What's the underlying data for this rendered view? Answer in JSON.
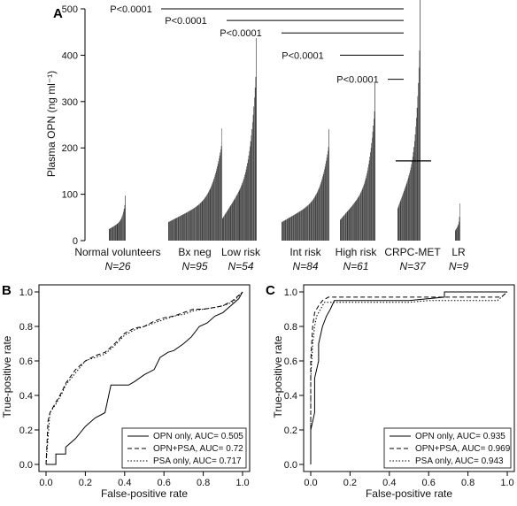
{
  "chart_data": [
    {
      "panel": "A",
      "type": "bar",
      "ylabel": "Plasma OPN (ng ml⁻¹)",
      "ylim": [
        0,
        500
      ],
      "yticks": [
        0,
        100,
        200,
        300,
        400,
        500
      ],
      "groups": [
        {
          "name": "Normal volunteers",
          "n": "N=26",
          "min": 25,
          "max": 97,
          "count": 26
        },
        {
          "name": "Bx neg",
          "n": "N=95",
          "min": 40,
          "max": 242,
          "count": 95
        },
        {
          "name": "Low risk",
          "n": "N=54",
          "min": 48,
          "max": 437,
          "count": 54
        },
        {
          "name": "Int risk",
          "n": "N=84",
          "min": 40,
          "max": 240,
          "count": 84
        },
        {
          "name": "High risk",
          "n": "N=61",
          "min": 45,
          "max": 340,
          "count": 61
        },
        {
          "name": "CRPC-MET",
          "n": "N=37",
          "min": 70,
          "max": 520,
          "count": 37,
          "median": 172
        },
        {
          "name": "LR",
          "n": "N=9",
          "min": 22,
          "max": 80,
          "count": 9
        }
      ],
      "comparisons": [
        {
          "label": "P<0.0001",
          "y": 500
        },
        {
          "label": "P<0.0001",
          "y": 475
        },
        {
          "label": "P<0.0001",
          "y": 448
        },
        {
          "label": "P<0.0001",
          "y": 400
        },
        {
          "label": "P<0.0001",
          "y": 348
        }
      ]
    },
    {
      "panel": "B",
      "type": "line",
      "xlabel": "False-positive rate",
      "ylabel": "True-positive rate",
      "xlim": [
        0,
        1
      ],
      "ylim": [
        0,
        1
      ],
      "xticks": [
        "0.0",
        "0.2",
        "0.4",
        "0.6",
        "0.8",
        "1.0"
      ],
      "yticks": [
        "0.0",
        "0.2",
        "0.4",
        "0.6",
        "0.8",
        "1.0"
      ],
      "series": [
        {
          "name": "OPN only, AUC= 0.505",
          "style": "solid",
          "points": [
            [
              0,
              0
            ],
            [
              0.05,
              0
            ],
            [
              0.05,
              0.06
            ],
            [
              0.1,
              0.06
            ],
            [
              0.1,
              0.1
            ],
            [
              0.15,
              0.15
            ],
            [
              0.2,
              0.22
            ],
            [
              0.25,
              0.27
            ],
            [
              0.3,
              0.3
            ],
            [
              0.33,
              0.46
            ],
            [
              0.38,
              0.46
            ],
            [
              0.42,
              0.46
            ],
            [
              0.45,
              0.48
            ],
            [
              0.5,
              0.52
            ],
            [
              0.55,
              0.55
            ],
            [
              0.58,
              0.62
            ],
            [
              0.62,
              0.65
            ],
            [
              0.65,
              0.66
            ],
            [
              0.7,
              0.7
            ],
            [
              0.74,
              0.74
            ],
            [
              0.78,
              0.8
            ],
            [
              0.82,
              0.82
            ],
            [
              0.86,
              0.86
            ],
            [
              0.9,
              0.88
            ],
            [
              0.94,
              0.92
            ],
            [
              0.98,
              0.96
            ],
            [
              1,
              1
            ]
          ]
        },
        {
          "name": "OPN+PSA, AUC= 0.72",
          "style": "dashed",
          "points": [
            [
              0,
              0
            ],
            [
              0.01,
              0.25
            ],
            [
              0.02,
              0.3
            ],
            [
              0.05,
              0.36
            ],
            [
              0.08,
              0.42
            ],
            [
              0.1,
              0.47
            ],
            [
              0.15,
              0.55
            ],
            [
              0.2,
              0.6
            ],
            [
              0.25,
              0.63
            ],
            [
              0.3,
              0.65
            ],
            [
              0.35,
              0.7
            ],
            [
              0.4,
              0.76
            ],
            [
              0.45,
              0.79
            ],
            [
              0.5,
              0.8
            ],
            [
              0.55,
              0.83
            ],
            [
              0.6,
              0.85
            ],
            [
              0.65,
              0.86
            ],
            [
              0.7,
              0.88
            ],
            [
              0.75,
              0.9
            ],
            [
              0.8,
              0.9
            ],
            [
              0.86,
              0.91
            ],
            [
              0.9,
              0.92
            ],
            [
              0.95,
              0.95
            ],
            [
              1,
              1
            ]
          ]
        },
        {
          "name": "PSA only, AUC= 0.717",
          "style": "dotted",
          "points": [
            [
              0,
              0
            ],
            [
              0.02,
              0.3
            ],
            [
              0.05,
              0.35
            ],
            [
              0.08,
              0.41
            ],
            [
              0.1,
              0.46
            ],
            [
              0.15,
              0.53
            ],
            [
              0.2,
              0.6
            ],
            [
              0.25,
              0.62
            ],
            [
              0.3,
              0.64
            ],
            [
              0.35,
              0.69
            ],
            [
              0.4,
              0.75
            ],
            [
              0.45,
              0.78
            ],
            [
              0.5,
              0.8
            ],
            [
              0.55,
              0.82
            ],
            [
              0.6,
              0.84
            ],
            [
              0.65,
              0.86
            ],
            [
              0.7,
              0.87
            ],
            [
              0.75,
              0.89
            ],
            [
              0.8,
              0.9
            ],
            [
              0.86,
              0.91
            ],
            [
              0.9,
              0.92
            ],
            [
              0.95,
              0.94
            ],
            [
              1,
              1
            ]
          ]
        }
      ],
      "legend": "bottom-right"
    },
    {
      "panel": "C",
      "type": "line",
      "xlabel": "False-positive rate",
      "ylabel": "True-positive rate",
      "xlim": [
        0,
        1
      ],
      "ylim": [
        0,
        1
      ],
      "xticks": [
        "0.0",
        "0.2",
        "0.4",
        "0.6",
        "0.8",
        "1.0"
      ],
      "yticks": [
        "0.0",
        "0.2",
        "0.4",
        "0.6",
        "0.8",
        "1.0"
      ],
      "series": [
        {
          "name": "OPN only, AUC= 0.935",
          "style": "solid",
          "points": [
            [
              0,
              0
            ],
            [
              0,
              0.2
            ],
            [
              0.02,
              0.3
            ],
            [
              0.02,
              0.5
            ],
            [
              0.04,
              0.6
            ],
            [
              0.04,
              0.7
            ],
            [
              0.06,
              0.8
            ],
            [
              0.08,
              0.86
            ],
            [
              0.1,
              0.9
            ],
            [
              0.12,
              0.95
            ],
            [
              0.5,
              0.95
            ],
            [
              0.68,
              0.97
            ],
            [
              0.68,
              1.0
            ],
            [
              1,
              1
            ]
          ]
        },
        {
          "name": "OPN+PSA, AUC= 0.969",
          "style": "dashed",
          "points": [
            [
              0,
              0
            ],
            [
              0,
              0.6
            ],
            [
              0.01,
              0.8
            ],
            [
              0.02,
              0.88
            ],
            [
              0.04,
              0.92
            ],
            [
              0.06,
              0.95
            ],
            [
              0.09,
              0.97
            ],
            [
              0.97,
              0.97
            ],
            [
              1,
              1
            ]
          ]
        },
        {
          "name": "PSA only, AUC= 0.943",
          "style": "dotted",
          "points": [
            [
              0,
              0
            ],
            [
              0,
              0.5
            ],
            [
              0.01,
              0.7
            ],
            [
              0.02,
              0.8
            ],
            [
              0.03,
              0.86
            ],
            [
              0.05,
              0.9
            ],
            [
              0.07,
              0.94
            ],
            [
              0.5,
              0.94
            ],
            [
              0.6,
              0.95
            ],
            [
              0.95,
              0.95
            ],
            [
              1,
              1
            ]
          ]
        }
      ],
      "legend": "bottom-right"
    }
  ],
  "panel_letters": [
    "A",
    "B",
    "C"
  ]
}
